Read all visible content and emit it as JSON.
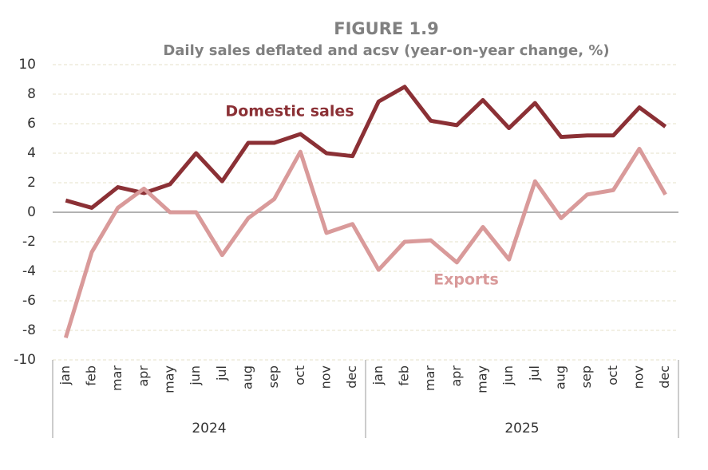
{
  "chart_data": {
    "type": "line",
    "title": "FIGURE 1.9",
    "subtitle": "Daily sales deflated and acsv (year-on-year change, %)",
    "categories": [
      "jan",
      "feb",
      "mar",
      "apr",
      "may",
      "jun",
      "jul",
      "aug",
      "sep",
      "oct",
      "nov",
      "dec",
      "jan",
      "feb",
      "mar",
      "apr",
      "may",
      "jun",
      "jul",
      "aug",
      "sep",
      "oct",
      "nov",
      "dec"
    ],
    "category_groups": [
      "2024",
      "2025"
    ],
    "series": [
      {
        "name": "Domestic sales",
        "color": "#8b3035",
        "values": [
          0.8,
          0.3,
          1.7,
          1.3,
          1.9,
          4.0,
          2.1,
          4.7,
          4.7,
          5.3,
          4.0,
          3.8,
          7.5,
          8.5,
          6.2,
          5.9,
          7.6,
          5.7,
          7.4,
          5.1,
          5.2,
          5.2,
          7.1,
          5.8
        ]
      },
      {
        "name": "Exports",
        "color": "#d99a9a",
        "values": [
          -8.5,
          -2.7,
          0.3,
          1.6,
          0.0,
          0.0,
          -2.9,
          -0.4,
          0.9,
          4.1,
          -1.4,
          -0.8,
          -3.9,
          -2.0,
          -1.9,
          -3.4,
          -1.0,
          -3.2,
          2.1,
          -0.4,
          1.2,
          1.5,
          4.3,
          1.2
        ]
      }
    ],
    "ylim": [
      -10,
      10
    ],
    "yticks": [
      -10,
      -8,
      -6,
      -4,
      -2,
      0,
      2,
      4,
      6,
      8,
      10
    ],
    "grid": true
  }
}
